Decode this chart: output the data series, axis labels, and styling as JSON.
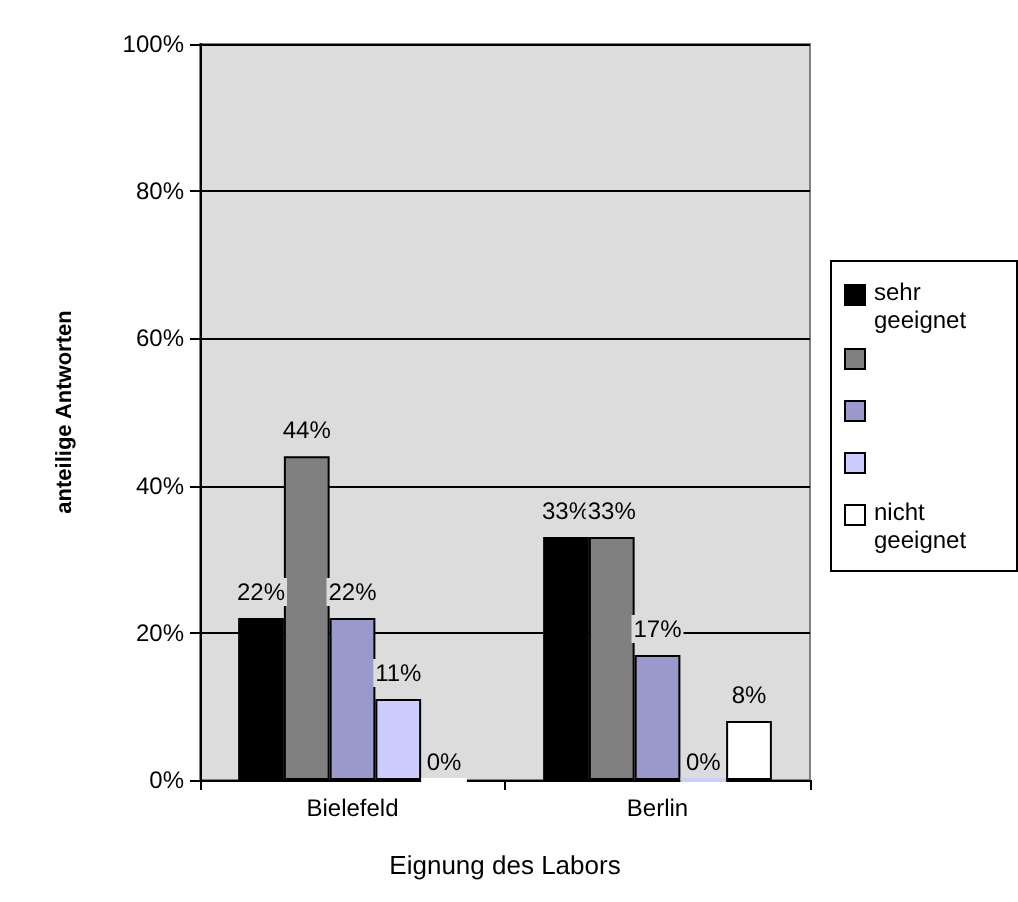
{
  "chart_data": {
    "type": "bar",
    "xlabel": "Eignung des Labors",
    "ylabel": "anteilige Antworten",
    "categories": [
      "Bielefeld",
      "Berlin"
    ],
    "series": [
      {
        "name": "sehr geeignet",
        "color": "#000000",
        "values": [
          22,
          33
        ],
        "value_labels": [
          "22%",
          "33%"
        ]
      },
      {
        "color": "#808080",
        "values": [
          44,
          33
        ],
        "value_labels": [
          "44%",
          "33%"
        ]
      },
      {
        "color": "#9999cc",
        "values": [
          22,
          17
        ],
        "value_labels": [
          "22%",
          "17%"
        ]
      },
      {
        "color": "#ccccff",
        "values": [
          11,
          0
        ],
        "value_labels": [
          "11%",
          "0%"
        ]
      },
      {
        "name": "nicht geeignet",
        "color": "#ffffff",
        "values": [
          0,
          8
        ],
        "value_labels": [
          "0%",
          "8%"
        ]
      }
    ],
    "ylim": [
      0,
      100
    ],
    "yticks": [
      {
        "value": 0,
        "label": "0%"
      },
      {
        "value": 20,
        "label": "20%"
      },
      {
        "value": 40,
        "label": "40%"
      },
      {
        "value": 60,
        "label": "60%"
      },
      {
        "value": 80,
        "label": "80%"
      },
      {
        "value": 100,
        "label": "100%"
      }
    ],
    "grid": "y",
    "legend": "right"
  }
}
